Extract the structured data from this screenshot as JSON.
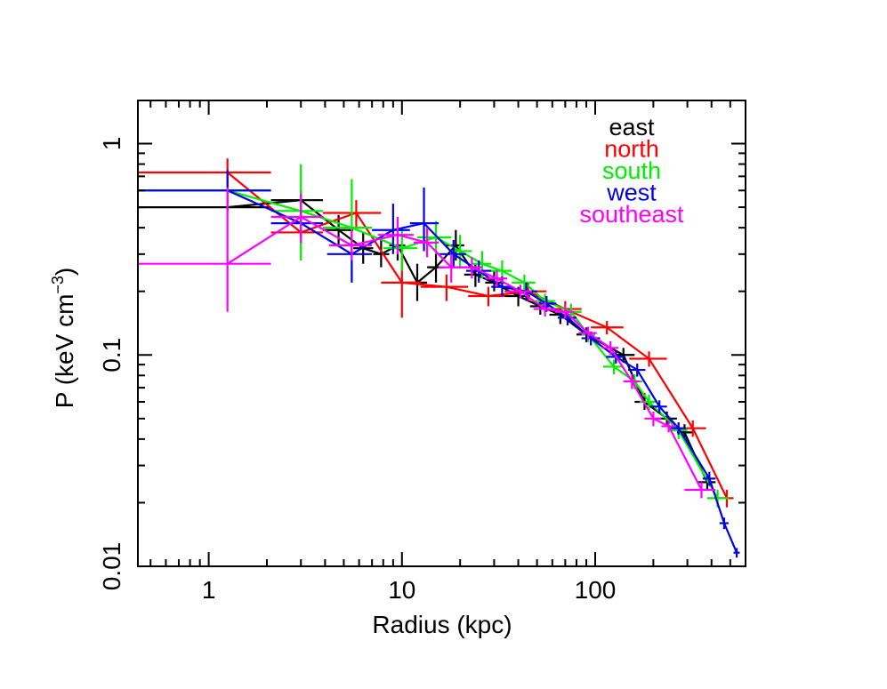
{
  "chart_data": {
    "type": "line",
    "xlabel": "Radius (kpc)",
    "ylabel_main": "P (keV cm",
    "ylabel_sup": "−3",
    "ylabel_close": ")",
    "xscale": "log",
    "yscale": "log",
    "xlim": [
      0.43,
      600
    ],
    "ylim": [
      0.01,
      1.6
    ],
    "xticks": [
      {
        "v": 1,
        "label": "1"
      },
      {
        "v": 10,
        "label": "10"
      },
      {
        "v": 100,
        "label": "100"
      }
    ],
    "yticks": [
      {
        "v": 1,
        "label": "1"
      },
      {
        "v": 0.1,
        "label": "0.1"
      },
      {
        "v": 0.01,
        "label": "0.01"
      }
    ],
    "legend_position": "top-right",
    "series": [
      {
        "name": "east",
        "color": "#000000",
        "points": [
          {
            "x": 1.25,
            "xlo": 0.43,
            "xhi": 2.1,
            "y": 0.5,
            "ylo": 0.5,
            "yhi": 0.5
          },
          {
            "x": 3.0,
            "xlo": 2.1,
            "xhi": 3.9,
            "y": 0.54,
            "ylo": 0.48,
            "yhi": 0.6
          },
          {
            "x": 4.7,
            "xlo": 3.9,
            "xhi": 5.6,
            "y": 0.39,
            "ylo": 0.33,
            "yhi": 0.46
          },
          {
            "x": 6.3,
            "xlo": 5.6,
            "xhi": 7.1,
            "y": 0.32,
            "ylo": 0.27,
            "yhi": 0.38
          },
          {
            "x": 7.8,
            "xlo": 7.1,
            "xhi": 8.6,
            "y": 0.3,
            "ylo": 0.26,
            "yhi": 0.35
          },
          {
            "x": 9.5,
            "xlo": 8.6,
            "xhi": 10.4,
            "y": 0.33,
            "ylo": 0.28,
            "yhi": 0.38
          },
          {
            "x": 12.0,
            "xlo": 10.4,
            "xhi": 13.5,
            "y": 0.22,
            "ylo": 0.18,
            "yhi": 0.27
          },
          {
            "x": 15.0,
            "xlo": 13.5,
            "xhi": 16.8,
            "y": 0.26,
            "ylo": 0.22,
            "yhi": 0.31
          },
          {
            "x": 19.0,
            "xlo": 16.8,
            "xhi": 21.0,
            "y": 0.33,
            "ylo": 0.28,
            "yhi": 0.39
          },
          {
            "x": 24.0,
            "xlo": 21.0,
            "xhi": 27.0,
            "y": 0.24,
            "ylo": 0.21,
            "yhi": 0.27
          },
          {
            "x": 30.0,
            "xlo": 27.0,
            "xhi": 34.0,
            "y": 0.22,
            "ylo": 0.2,
            "yhi": 0.25
          },
          {
            "x": 40.0,
            "xlo": 34.0,
            "xhi": 46.0,
            "y": 0.19,
            "ylo": 0.17,
            "yhi": 0.21
          },
          {
            "x": 52.0,
            "xlo": 46.0,
            "xhi": 58.0,
            "y": 0.17,
            "ylo": 0.155,
            "yhi": 0.185
          },
          {
            "x": 66.0,
            "xlo": 58.0,
            "xhi": 74.0,
            "y": 0.155,
            "ylo": 0.14,
            "yhi": 0.17
          },
          {
            "x": 90.0,
            "xlo": 80.0,
            "xhi": 100.0,
            "y": 0.125,
            "ylo": 0.115,
            "yhi": 0.135
          },
          {
            "x": 140.0,
            "xlo": 125.0,
            "xhi": 160.0,
            "y": 0.1,
            "ylo": 0.092,
            "yhi": 0.108
          },
          {
            "x": 180.0,
            "xlo": 160.0,
            "xhi": 205.0,
            "y": 0.06,
            "ylo": 0.055,
            "yhi": 0.066
          },
          {
            "x": 235.0,
            "xlo": 205.0,
            "xhi": 265.0,
            "y": 0.05,
            "ylo": 0.046,
            "yhi": 0.054
          },
          {
            "x": 290.0,
            "xlo": 265.0,
            "xhi": 320.0,
            "y": 0.043,
            "ylo": 0.039,
            "yhi": 0.047
          },
          {
            "x": 380.0,
            "xlo": 340.0,
            "xhi": 420.0,
            "y": 0.025,
            "ylo": 0.023,
            "yhi": 0.027
          }
        ]
      },
      {
        "name": "north",
        "color": "#ff0000",
        "points": [
          {
            "x": 1.25,
            "xlo": 0.43,
            "xhi": 2.1,
            "y": 0.73,
            "ylo": 0.62,
            "yhi": 0.85
          },
          {
            "x": 3.0,
            "xlo": 2.1,
            "xhi": 3.9,
            "y": 0.38,
            "ylo": 0.33,
            "yhi": 0.44
          },
          {
            "x": 5.8,
            "xlo": 3.9,
            "xhi": 7.8,
            "y": 0.47,
            "ylo": 0.4,
            "yhi": 0.54
          },
          {
            "x": 10.0,
            "xlo": 7.8,
            "xhi": 12.5,
            "y": 0.22,
            "ylo": 0.15,
            "yhi": 0.3
          },
          {
            "x": 17.0,
            "xlo": 12.5,
            "xhi": 22.0,
            "y": 0.21,
            "ylo": 0.18,
            "yhi": 0.24
          },
          {
            "x": 28.0,
            "xlo": 22.0,
            "xhi": 34.0,
            "y": 0.19,
            "ylo": 0.17,
            "yhi": 0.21
          },
          {
            "x": 45.0,
            "xlo": 34.0,
            "xhi": 56.0,
            "y": 0.2,
            "ylo": 0.18,
            "yhi": 0.22
          },
          {
            "x": 70.0,
            "xlo": 56.0,
            "xhi": 85.0,
            "y": 0.165,
            "ylo": 0.15,
            "yhi": 0.18
          },
          {
            "x": 115.0,
            "xlo": 95.0,
            "xhi": 140.0,
            "y": 0.135,
            "ylo": 0.125,
            "yhi": 0.145
          },
          {
            "x": 190.0,
            "xlo": 150.0,
            "xhi": 235.0,
            "y": 0.096,
            "ylo": 0.088,
            "yhi": 0.104
          },
          {
            "x": 320.0,
            "xlo": 270.0,
            "xhi": 375.0,
            "y": 0.045,
            "ylo": 0.041,
            "yhi": 0.049
          },
          {
            "x": 480.0,
            "xlo": 420.0,
            "xhi": 520.0,
            "y": 0.021,
            "ylo": 0.019,
            "yhi": 0.023
          }
        ]
      },
      {
        "name": "south",
        "color": "#00ee00",
        "points": [
          {
            "x": 1.25,
            "xlo": 0.43,
            "xhi": 2.1,
            "y": 0.6,
            "ylo": 0.6,
            "yhi": 0.6
          },
          {
            "x": 3.0,
            "xlo": 2.1,
            "xhi": 3.9,
            "y": 0.48,
            "ylo": 0.28,
            "yhi": 0.8
          },
          {
            "x": 5.5,
            "xlo": 3.9,
            "xhi": 7.0,
            "y": 0.4,
            "ylo": 0.22,
            "yhi": 0.68
          },
          {
            "x": 10.0,
            "xlo": 8.0,
            "xhi": 12.0,
            "y": 0.32,
            "ylo": 0.25,
            "yhi": 0.4
          },
          {
            "x": 15.0,
            "xlo": 12.0,
            "xhi": 18.0,
            "y": 0.36,
            "ylo": 0.3,
            "yhi": 0.43
          },
          {
            "x": 20.0,
            "xlo": 18.0,
            "xhi": 23.0,
            "y": 0.31,
            "ylo": 0.26,
            "yhi": 0.37
          },
          {
            "x": 26.0,
            "xlo": 23.0,
            "xhi": 29.0,
            "y": 0.27,
            "ylo": 0.23,
            "yhi": 0.31
          },
          {
            "x": 33.0,
            "xlo": 29.0,
            "xhi": 37.0,
            "y": 0.25,
            "ylo": 0.22,
            "yhi": 0.28
          },
          {
            "x": 43.0,
            "xlo": 37.0,
            "xhi": 49.0,
            "y": 0.22,
            "ylo": 0.2,
            "yhi": 0.24
          },
          {
            "x": 55.0,
            "xlo": 49.0,
            "xhi": 62.0,
            "y": 0.18,
            "ylo": 0.165,
            "yhi": 0.195
          },
          {
            "x": 75.0,
            "xlo": 66.0,
            "xhi": 85.0,
            "y": 0.16,
            "ylo": 0.145,
            "yhi": 0.175
          },
          {
            "x": 92.0,
            "xlo": 85.0,
            "xhi": 100.0,
            "y": 0.125,
            "ylo": 0.115,
            "yhi": 0.135
          },
          {
            "x": 125.0,
            "xlo": 110.0,
            "xhi": 140.0,
            "y": 0.088,
            "ylo": 0.081,
            "yhi": 0.095
          },
          {
            "x": 160.0,
            "xlo": 145.0,
            "xhi": 175.0,
            "y": 0.075,
            "ylo": 0.069,
            "yhi": 0.081
          },
          {
            "x": 190.0,
            "xlo": 170.0,
            "xhi": 210.0,
            "y": 0.06,
            "ylo": 0.055,
            "yhi": 0.065
          },
          {
            "x": 270.0,
            "xlo": 245.0,
            "xhi": 300.0,
            "y": 0.044,
            "ylo": 0.04,
            "yhi": 0.048
          },
          {
            "x": 430.0,
            "xlo": 380.0,
            "xhi": 490.0,
            "y": 0.021,
            "ylo": 0.019,
            "yhi": 0.023
          }
        ]
      },
      {
        "name": "west",
        "color": "#0000ee",
        "points": [
          {
            "x": 1.25,
            "xlo": 0.43,
            "xhi": 2.1,
            "y": 0.6,
            "ylo": 0.48,
            "yhi": 0.75
          },
          {
            "x": 3.0,
            "xlo": 2.1,
            "xhi": 3.9,
            "y": 0.42,
            "ylo": 0.36,
            "yhi": 0.49
          },
          {
            "x": 5.5,
            "xlo": 4.1,
            "xhi": 7.0,
            "y": 0.3,
            "ylo": 0.22,
            "yhi": 0.38
          },
          {
            "x": 9.0,
            "xlo": 7.0,
            "xhi": 11.0,
            "y": 0.39,
            "ylo": 0.3,
            "yhi": 0.52
          },
          {
            "x": 13.0,
            "xlo": 11.0,
            "xhi": 15.5,
            "y": 0.42,
            "ylo": 0.31,
            "yhi": 0.62
          },
          {
            "x": 18.5,
            "xlo": 15.5,
            "xhi": 21.5,
            "y": 0.3,
            "ylo": 0.26,
            "yhi": 0.35
          },
          {
            "x": 25.0,
            "xlo": 21.5,
            "xhi": 29.0,
            "y": 0.25,
            "ylo": 0.22,
            "yhi": 0.28
          },
          {
            "x": 33.0,
            "xlo": 29.0,
            "xhi": 37.0,
            "y": 0.21,
            "ylo": 0.19,
            "yhi": 0.235
          },
          {
            "x": 44.0,
            "xlo": 38.0,
            "xhi": 50.0,
            "y": 0.2,
            "ylo": 0.18,
            "yhi": 0.22
          },
          {
            "x": 56.0,
            "xlo": 50.0,
            "xhi": 63.0,
            "y": 0.175,
            "ylo": 0.16,
            "yhi": 0.19
          },
          {
            "x": 72.0,
            "xlo": 64.0,
            "xhi": 80.0,
            "y": 0.15,
            "ylo": 0.138,
            "yhi": 0.162
          },
          {
            "x": 95.0,
            "xlo": 85.0,
            "xhi": 106.0,
            "y": 0.12,
            "ylo": 0.111,
            "yhi": 0.129
          },
          {
            "x": 128.0,
            "xlo": 114.0,
            "xhi": 142.0,
            "y": 0.098,
            "ylo": 0.091,
            "yhi": 0.105
          },
          {
            "x": 165.0,
            "xlo": 148.0,
            "xhi": 182.0,
            "y": 0.085,
            "ylo": 0.079,
            "yhi": 0.091
          },
          {
            "x": 215.0,
            "xlo": 195.0,
            "xhi": 235.0,
            "y": 0.057,
            "ylo": 0.053,
            "yhi": 0.061
          },
          {
            "x": 270.0,
            "xlo": 245.0,
            "xhi": 295.0,
            "y": 0.045,
            "ylo": 0.042,
            "yhi": 0.048
          },
          {
            "x": 390.0,
            "xlo": 360.0,
            "xhi": 420.0,
            "y": 0.026,
            "ylo": 0.024,
            "yhi": 0.028
          },
          {
            "x": 465.0,
            "xlo": 440.0,
            "xhi": 490.0,
            "y": 0.016,
            "ylo": 0.015,
            "yhi": 0.017
          },
          {
            "x": 540.0,
            "xlo": 520.0,
            "xhi": 560.0,
            "y": 0.0116,
            "ylo": 0.011,
            "yhi": 0.0122
          }
        ]
      },
      {
        "name": "southeast",
        "color": "#ff00ff",
        "points": [
          {
            "x": 1.25,
            "xlo": 0.43,
            "xhi": 2.1,
            "y": 0.27,
            "ylo": 0.16,
            "yhi": 0.62
          },
          {
            "x": 3.0,
            "xlo": 2.1,
            "xhi": 3.9,
            "y": 0.45,
            "ylo": 0.34,
            "yhi": 0.58
          },
          {
            "x": 5.5,
            "xlo": 4.2,
            "xhi": 7.0,
            "y": 0.33,
            "ylo": 0.28,
            "yhi": 0.39
          },
          {
            "x": 9.5,
            "xlo": 7.5,
            "xhi": 11.5,
            "y": 0.37,
            "ylo": 0.3,
            "yhi": 0.45
          },
          {
            "x": 13.5,
            "xlo": 11.5,
            "xhi": 15.5,
            "y": 0.34,
            "ylo": 0.29,
            "yhi": 0.4
          },
          {
            "x": 18.0,
            "xlo": 15.5,
            "xhi": 20.5,
            "y": 0.26,
            "ylo": 0.22,
            "yhi": 0.3
          },
          {
            "x": 23.0,
            "xlo": 20.5,
            "xhi": 26.0,
            "y": 0.26,
            "ylo": 0.23,
            "yhi": 0.29
          },
          {
            "x": 31.0,
            "xlo": 27.0,
            "xhi": 35.0,
            "y": 0.23,
            "ylo": 0.21,
            "yhi": 0.25
          },
          {
            "x": 41.0,
            "xlo": 35.0,
            "xhi": 47.0,
            "y": 0.2,
            "ylo": 0.185,
            "yhi": 0.215
          },
          {
            "x": 55.0,
            "xlo": 48.0,
            "xhi": 62.0,
            "y": 0.165,
            "ylo": 0.152,
            "yhi": 0.178
          },
          {
            "x": 70.0,
            "xlo": 62.0,
            "xhi": 78.0,
            "y": 0.16,
            "ylo": 0.148,
            "yhi": 0.172
          },
          {
            "x": 92.0,
            "xlo": 82.0,
            "xhi": 102.0,
            "y": 0.127,
            "ylo": 0.118,
            "yhi": 0.136
          },
          {
            "x": 120.0,
            "xlo": 108.0,
            "xhi": 132.0,
            "y": 0.108,
            "ylo": 0.1,
            "yhi": 0.116
          },
          {
            "x": 155.0,
            "xlo": 140.0,
            "xhi": 170.0,
            "y": 0.075,
            "ylo": 0.069,
            "yhi": 0.081
          },
          {
            "x": 200.0,
            "xlo": 180.0,
            "xhi": 220.0,
            "y": 0.05,
            "ylo": 0.046,
            "yhi": 0.054
          },
          {
            "x": 240.0,
            "xlo": 220.0,
            "xhi": 262.0,
            "y": 0.046,
            "ylo": 0.043,
            "yhi": 0.049
          },
          {
            "x": 355.0,
            "xlo": 290.0,
            "xhi": 420.0,
            "y": 0.023,
            "ylo": 0.021,
            "yhi": 0.025
          }
        ]
      }
    ]
  }
}
